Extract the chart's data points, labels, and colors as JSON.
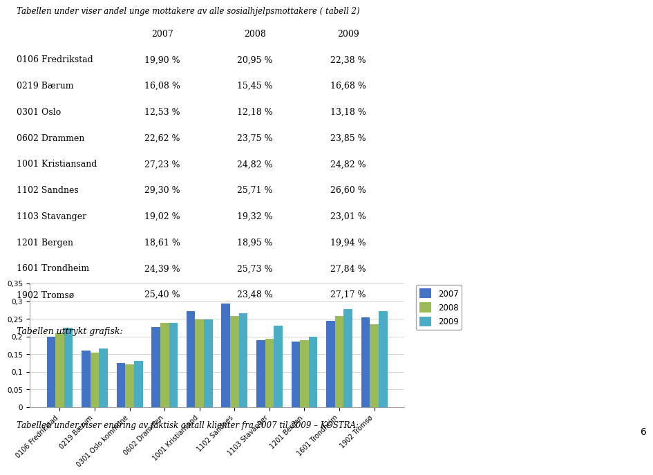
{
  "categories": [
    "0106 Fredrikstad",
    "0219 Bærum",
    "0301 Oslo kommune",
    "0602 Drammen",
    "1001 Kristiansand",
    "1102 Sandnes",
    "1103 Stavanger",
    "1201 Bergen",
    "1601 Trondheim",
    "1902 Tromsø"
  ],
  "values_2007": [
    0.199,
    0.1608,
    0.1253,
    0.2262,
    0.2723,
    0.293,
    0.1902,
    0.1861,
    0.2439,
    0.254
  ],
  "values_2008": [
    0.2095,
    0.1545,
    0.1218,
    0.2375,
    0.2482,
    0.2571,
    0.1932,
    0.1895,
    0.2573,
    0.2348
  ],
  "values_2009": [
    0.2238,
    0.1668,
    0.1318,
    0.2385,
    0.2482,
    0.266,
    0.2301,
    0.1994,
    0.2784,
    0.2717
  ],
  "color_2007": "#4472C4",
  "color_2008": "#9BBB59",
  "color_2009": "#4BACC6",
  "legend_2007": "2007",
  "legend_2008": "2008",
  "legend_2009": "2009",
  "ylim": [
    0,
    0.35
  ],
  "yticks": [
    0,
    0.05,
    0.1,
    0.15,
    0.2,
    0.25,
    0.3,
    0.35
  ],
  "header_text": "Tabellen under viser andel unge mottakere av alle sosialhjelpsmottakere ( tabell 2)",
  "col_header": [
    "",
    "2007",
    "2008",
    "2009"
  ],
  "table_rows": [
    [
      "0106 Fredrikstad",
      "19,90 %",
      "20,95 %",
      "22,38 %"
    ],
    [
      "0219 Bærum",
      "16,08 %",
      "15,45 %",
      "16,68 %"
    ],
    [
      "0301 Oslo",
      "12,53 %",
      "12,18 %",
      "13,18 %"
    ],
    [
      "0602 Drammen",
      "22,62 %",
      "23,75 %",
      "23,85 %"
    ],
    [
      "1001 Kristiansand",
      "27,23 %",
      "24,82 %",
      "24,82 %"
    ],
    [
      "1102 Sandnes",
      "29,30 %",
      "25,71 %",
      "26,60 %"
    ],
    [
      "1103 Stavanger",
      "19,02 %",
      "19,32 %",
      "23,01 %"
    ],
    [
      "1201 Bergen",
      "18,61 %",
      "18,95 %",
      "19,94 %"
    ],
    [
      "1601 Trondheim",
      "24,39 %",
      "25,73 %",
      "27,84 %"
    ],
    [
      "1902 Tromsø",
      "25,40 %",
      "23,48 %",
      "27,17 %"
    ]
  ],
  "section_label": "Tabellen uttrykt grafisk:",
  "footer_text": "Tabellen under viser endring av faktisk antall klienter fra 2007 til 2009 – KOSTRA:",
  "bar_width": 0.25,
  "fig_bg": "#FFFFFF",
  "chart_bg": "#FFFFFF",
  "grid_color": "#C0C0C0",
  "page_number": "6"
}
